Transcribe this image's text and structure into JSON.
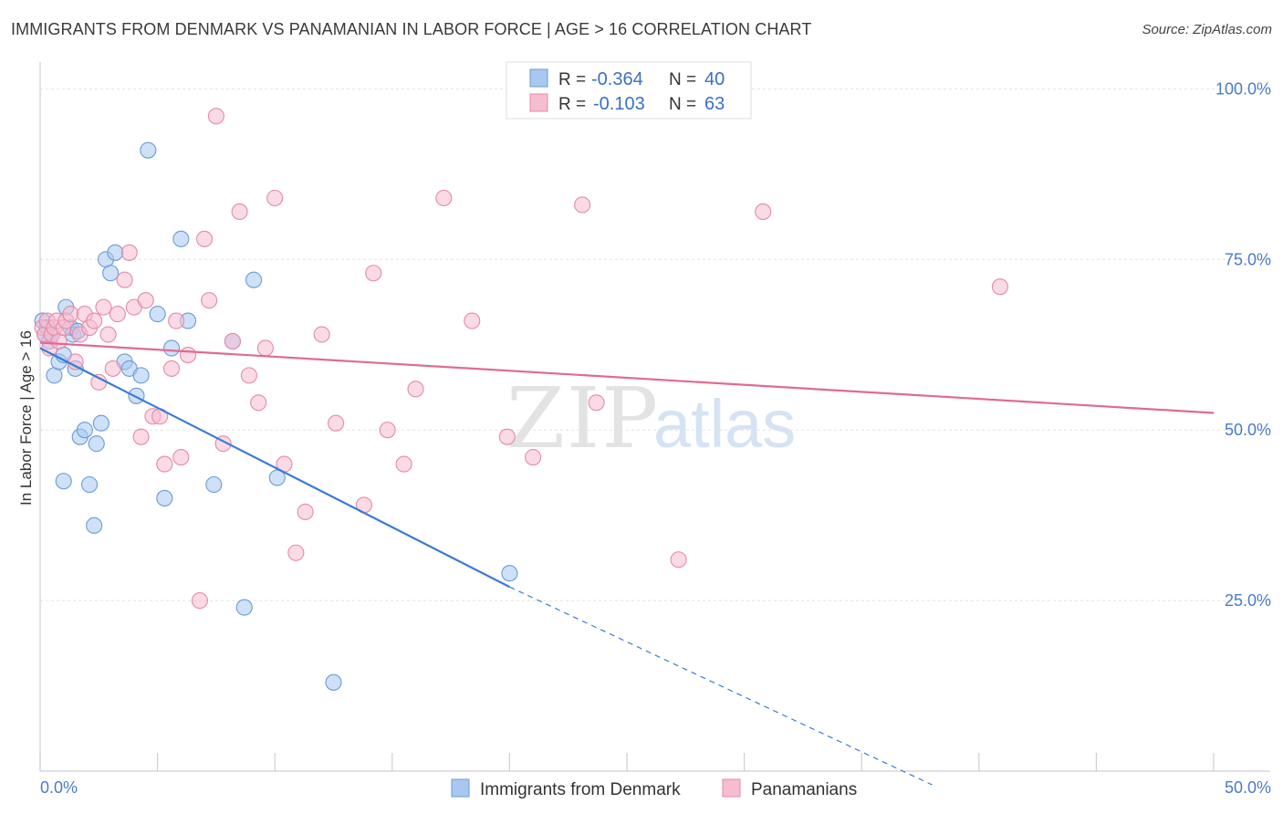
{
  "header": {
    "title": "IMMIGRANTS FROM DENMARK VS PANAMANIAN IN LABOR FORCE | AGE > 16 CORRELATION CHART",
    "source": "Source: ZipAtlas.com"
  },
  "watermark": {
    "zip": "ZIP",
    "atlas": "atlas"
  },
  "chart_data": {
    "type": "scatter",
    "ylabel": "In Labor Force | Age > 16",
    "xlim": [
      0,
      50
    ],
    "ylim": [
      0,
      105
    ],
    "x_tick_labels": [
      {
        "value": 0,
        "label": "0.0%"
      },
      {
        "value": 50,
        "label": "50.0%"
      }
    ],
    "y_tick_labels": [
      {
        "value": 100,
        "label": "100.0%"
      },
      {
        "value": 75,
        "label": "75.0%"
      },
      {
        "value": 50,
        "label": "50.0%"
      },
      {
        "value": 25,
        "label": "25.0%"
      }
    ],
    "grid": true,
    "legend_placement": "top-center",
    "stats": [
      {
        "r_label": "R =",
        "r_value": "-0.364",
        "n_label": "N =",
        "n_value": "40"
      },
      {
        "r_label": "R =",
        "r_value": "-0.103",
        "n_label": "N =",
        "n_value": "63"
      }
    ],
    "series": [
      {
        "name": "Immigrants from Denmark",
        "color": "#a8c8f0",
        "edge": "#6a9ad8",
        "line_color": "#3a7bd5",
        "trend": {
          "x0": 0,
          "y0": 62,
          "x1": 20,
          "y1": 27,
          "x_dash_end": 38,
          "y_dash_end": -2
        },
        "points": [
          [
            0.1,
            66
          ],
          [
            0.2,
            64
          ],
          [
            0.3,
            65
          ],
          [
            0.4,
            63
          ],
          [
            0.5,
            64
          ],
          [
            0.6,
            58
          ],
          [
            0.8,
            60
          ],
          [
            1.0,
            61
          ],
          [
            1.1,
            68
          ],
          [
            1.3,
            65
          ],
          [
            1.4,
            64
          ],
          [
            1.5,
            59
          ],
          [
            1.7,
            49
          ],
          [
            1.9,
            50
          ],
          [
            2.1,
            42
          ],
          [
            2.3,
            36
          ],
          [
            2.4,
            48
          ],
          [
            2.6,
            51
          ],
          [
            2.8,
            75
          ],
          [
            3.0,
            73
          ],
          [
            3.2,
            76
          ],
          [
            3.6,
            60
          ],
          [
            3.8,
            59
          ],
          [
            4.1,
            55
          ],
          [
            4.3,
            58
          ],
          [
            4.6,
            91
          ],
          [
            5.0,
            67
          ],
          [
            5.3,
            40
          ],
          [
            5.6,
            62
          ],
          [
            6.0,
            78
          ],
          [
            6.3,
            66
          ],
          [
            7.4,
            42
          ],
          [
            8.2,
            63
          ],
          [
            8.7,
            24
          ],
          [
            9.1,
            72
          ],
          [
            10.1,
            43
          ],
          [
            12.5,
            13
          ],
          [
            20.0,
            29
          ],
          [
            1.0,
            42.5
          ],
          [
            1.6,
            64.5
          ]
        ]
      },
      {
        "name": "Panamanians",
        "color": "#f6bccf",
        "edge": "#e58aa8",
        "line_color": "#e06a95",
        "trend": {
          "x0": 0,
          "y0": 62.8,
          "x1": 50,
          "y1": 52.5
        },
        "points": [
          [
            0.1,
            65
          ],
          [
            0.2,
            64
          ],
          [
            0.3,
            66
          ],
          [
            0.4,
            62
          ],
          [
            0.5,
            64
          ],
          [
            0.6,
            65
          ],
          [
            0.7,
            66
          ],
          [
            0.8,
            63
          ],
          [
            1.0,
            65
          ],
          [
            1.1,
            66
          ],
          [
            1.3,
            67
          ],
          [
            1.5,
            60
          ],
          [
            1.7,
            64
          ],
          [
            1.9,
            67
          ],
          [
            2.1,
            65
          ],
          [
            2.3,
            66
          ],
          [
            2.5,
            57
          ],
          [
            2.7,
            68
          ],
          [
            2.9,
            64
          ],
          [
            3.1,
            59
          ],
          [
            3.3,
            67
          ],
          [
            3.6,
            72
          ],
          [
            3.8,
            76
          ],
          [
            4.0,
            68
          ],
          [
            4.3,
            49
          ],
          [
            4.5,
            69
          ],
          [
            4.8,
            52
          ],
          [
            5.1,
            52
          ],
          [
            5.3,
            45
          ],
          [
            5.6,
            59
          ],
          [
            5.8,
            66
          ],
          [
            6.0,
            46
          ],
          [
            6.3,
            61
          ],
          [
            6.8,
            25
          ],
          [
            7.0,
            78
          ],
          [
            7.2,
            69
          ],
          [
            7.5,
            96
          ],
          [
            7.8,
            48
          ],
          [
            8.2,
            63
          ],
          [
            8.5,
            82
          ],
          [
            8.9,
            58
          ],
          [
            9.3,
            54
          ],
          [
            9.6,
            62
          ],
          [
            10.0,
            84
          ],
          [
            10.4,
            45
          ],
          [
            10.9,
            32
          ],
          [
            11.3,
            38
          ],
          [
            12.0,
            64
          ],
          [
            12.6,
            51
          ],
          [
            13.8,
            39
          ],
          [
            14.2,
            73
          ],
          [
            14.8,
            50
          ],
          [
            15.5,
            45
          ],
          [
            16.0,
            56
          ],
          [
            17.2,
            84
          ],
          [
            18.4,
            66
          ],
          [
            19.9,
            49
          ],
          [
            21.0,
            46
          ],
          [
            23.1,
            83
          ],
          [
            23.7,
            54
          ],
          [
            27.2,
            31
          ],
          [
            30.8,
            82
          ],
          [
            40.9,
            71
          ]
        ]
      }
    ]
  }
}
